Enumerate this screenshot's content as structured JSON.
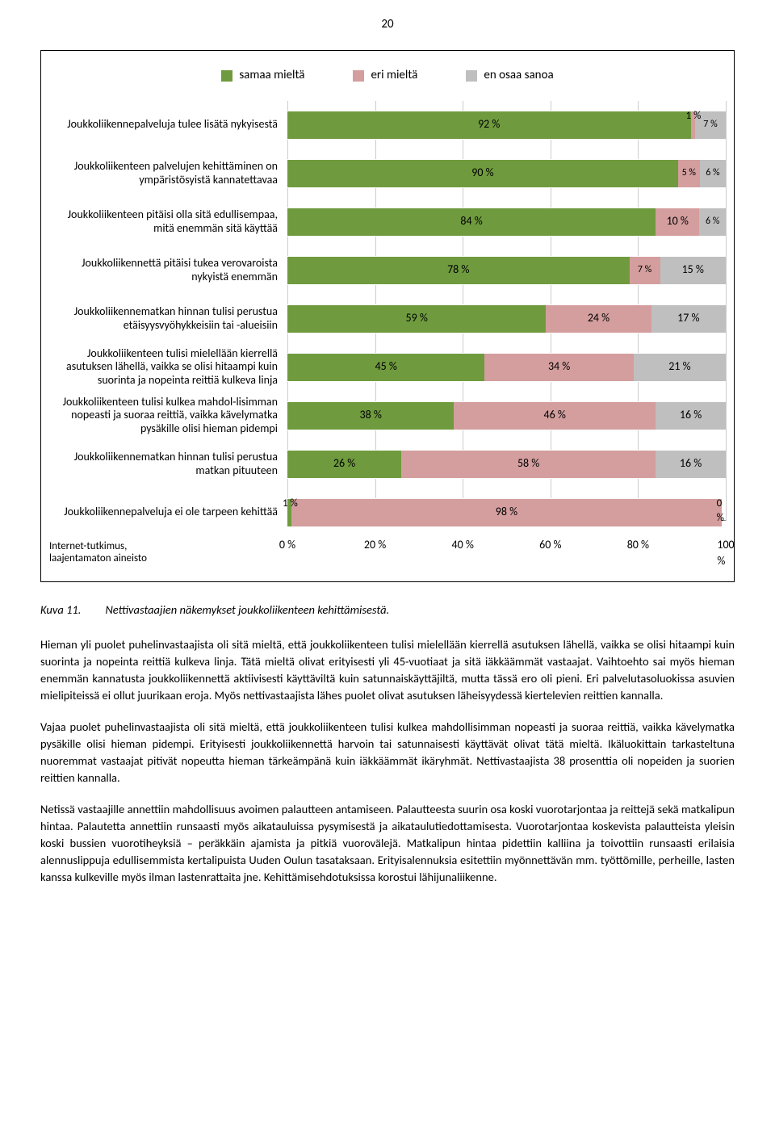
{
  "page_number": "20",
  "chart": {
    "type": "stacked-bar-horizontal",
    "colors": {
      "agree": "#6f9b3e",
      "disagree": "#d49e9e",
      "dont_know": "#bfbfbf",
      "grid": "#cccccc",
      "axis": "#888888"
    },
    "legend": [
      {
        "key": "agree",
        "label": "samaa mieltä"
      },
      {
        "key": "disagree",
        "label": "eri mieltä"
      },
      {
        "key": "dont_know",
        "label": "en osaa sanoa"
      }
    ],
    "x_ticks": [
      "0 %",
      "20 %",
      "40 %",
      "60 %",
      "80 %",
      "100 %"
    ],
    "axis_note": "Internet-tutkimus,\nlaajentamaton aineisto",
    "rows": [
      {
        "label": "Joukkoliikennepalveluja tulee lisätä nykyisestä",
        "values": [
          92,
          1,
          7
        ],
        "text": [
          "92 %",
          "1 %",
          "7 %"
        ]
      },
      {
        "label": "Joukkoliikenteen palvelujen kehittäminen on ympäristösyistä kannatettavaa",
        "values": [
          90,
          5,
          6
        ],
        "text": [
          "90 %",
          "5 %",
          "6 %"
        ]
      },
      {
        "label": "Joukkoliikenteen pitäisi olla sitä edullisempaa, mitä enemmän sitä käyttää",
        "values": [
          84,
          10,
          6
        ],
        "text": [
          "84 %",
          "10 %",
          "6 %"
        ]
      },
      {
        "label": "Joukkoliikennettä pitäisi tukea verovaroista nykyistä enemmän",
        "values": [
          78,
          7,
          15
        ],
        "text": [
          "78 %",
          "7 %",
          "15 %"
        ]
      },
      {
        "label": "Joukkoliikennematkan hinnan tulisi perustua etäisyysvyöhykkeisiin tai -alueisiin",
        "values": [
          59,
          24,
          17
        ],
        "text": [
          "59 %",
          "24 %",
          "17 %"
        ]
      },
      {
        "label": "Joukkoliikenteen tulisi mielellään kierrellä asutuksen lähellä, vaikka se olisi hitaampi kuin suorinta ja nopeinta reittiä kulkeva linja",
        "values": [
          45,
          34,
          21
        ],
        "text": [
          "45 %",
          "34 %",
          "21 %"
        ]
      },
      {
        "label": "Joukkoliikenteen tulisi kulkea mahdol-lisimman nopeasti ja suoraa reittiä, vaikka kävelymatka pysäkille olisi hieman pidempi",
        "values": [
          38,
          46,
          16
        ],
        "text": [
          "38 %",
          "46 %",
          "16 %"
        ]
      },
      {
        "label": "Joukkoliikennematkan hinnan tulisi perustua matkan pituuteen",
        "values": [
          26,
          58,
          16
        ],
        "text": [
          "26 %",
          "58 %",
          "16 %"
        ]
      },
      {
        "label": "Joukkoliikennepalveluja ei ole tarpeen kehittää",
        "values": [
          1,
          98,
          0
        ],
        "text": [
          "1 %",
          "98 %",
          "0 %"
        ]
      }
    ]
  },
  "caption": {
    "ref": "Kuva 11.",
    "text": "Nettivastaajien näkemykset joukkoliikenteen kehittämisestä."
  },
  "paragraphs": [
    "Hieman yli puolet puhelinvastaajista oli sitä mieltä, että joukkoliikenteen tulisi mielellään kierrellä asutuksen lähellä, vaikka se olisi hitaampi kuin suorinta ja nopeinta reittiä kulkeva linja. Tätä mieltä olivat erityisesti yli 45-vuotiaat ja sitä iäkkäämmät vastaajat. Vaihtoehto sai myös hieman enemmän kannatusta joukkoliikennettä aktiivisesti käyttäviltä kuin satunnaiskäyttäjiltä, mutta tässä ero oli pieni. Eri palvelutasoluokissa asuvien mielipiteissä ei ollut juurikaan eroja. Myös nettivastaajista lähes puolet olivat asutuksen läheisyydessä kiertelevien reittien kannalla.",
    "Vajaa puolet puhelinvastaajista oli sitä mieltä, että joukkoliikenteen tulisi kulkea mahdollisimman nopeasti ja suoraa reittiä, vaikka kävelymatka pysäkille olisi hieman pidempi. Erityisesti joukkoliikennettä harvoin tai satunnaisesti käyttävät olivat tätä mieltä. Ikäluokittain tarkasteltuna nuoremmat vastaajat pitivät nopeutta hieman tärkeämpänä kuin iäkkäämmät ikäryhmät. Nettivastaajista 38 prosenttia oli nopeiden ja suorien reittien kannalla.",
    "Netissä vastaajille annettiin mahdollisuus avoimen palautteen antamiseen. Palautteesta suurin osa koski vuorotarjontaa ja reittejä sekä matkalipun hintaa. Palautetta annettiin runsaasti myös aikatauluissa pysymisestä ja aikataulutiedottamisesta. Vuorotarjontaa koskevista palautteista yleisin koski bussien vuorotiheyksiä – peräkkäin ajamista ja pitkiä vuorovälejä. Matkalipun hintaa pidettiin kalliina ja toivottiin runsaasti erilaisia alennuslippuja edullisemmista kertalipuista Uuden Oulun tasataksaan. Erityisalennuksia esitettiin myönnettävän mm. työttömille, perheille, lasten kanssa kulkeville myös ilman lastenrattaita jne. Kehittämisehdotuksissa korostui lähijunaliikenne."
  ]
}
